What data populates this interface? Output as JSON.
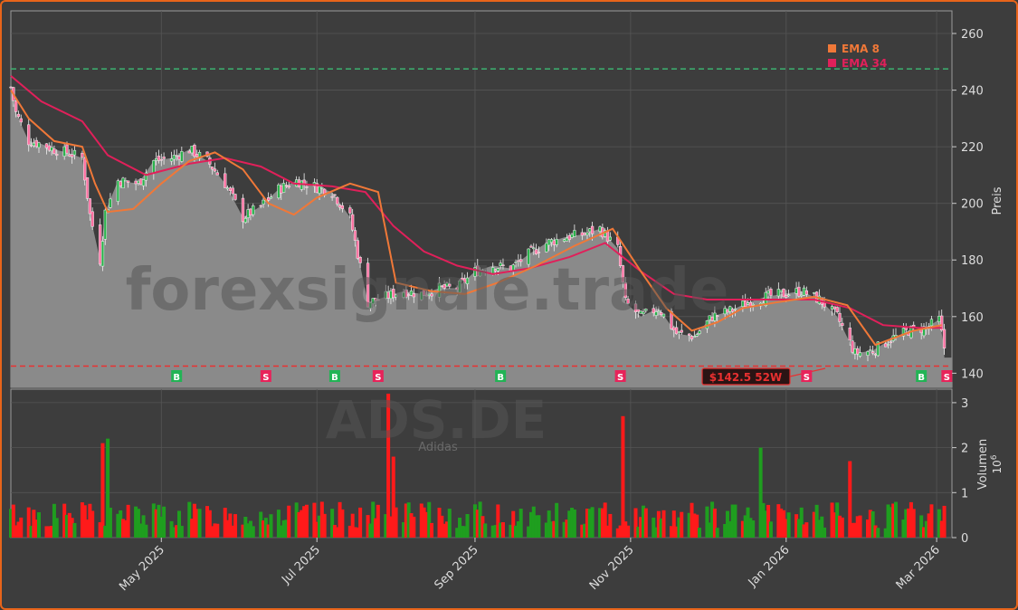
{
  "chart_data": {
    "type": "candlestick",
    "symbol": "ADS.DE",
    "company": "Adidas",
    "watermark": "forexsignale.trade",
    "price_axis": {
      "label": "Preis",
      "ylim": [
        135,
        268
      ],
      "ticks": [
        140,
        160,
        180,
        200,
        220,
        240,
        260
      ]
    },
    "volume_axis": {
      "label": "Volumen",
      "exponent_label": "10^6",
      "ylim": [
        0,
        3.3
      ],
      "ticks": [
        0,
        1,
        2,
        3
      ]
    },
    "x_axis": {
      "tick_labels": [
        "May 2025",
        "Jul 2025",
        "Sep 2025",
        "Nov 2025",
        "Jan 2026",
        "Mar 2026"
      ],
      "tick_dates": [
        "2025-05-01",
        "2025-07-01",
        "2025-09-01",
        "2025-11-01",
        "2026-01-01",
        "2026-03-01"
      ],
      "date_range": [
        "2025-03-03",
        "2026-03-07"
      ]
    },
    "legend": [
      {
        "label": "EMA 8",
        "color": "#f07838"
      },
      {
        "label": "EMA 34",
        "color": "#e0205a"
      }
    ],
    "high_52w": {
      "value": 247.5,
      "color": "#3cb371",
      "style": "dashed"
    },
    "low_52w": {
      "value": 142.5,
      "label": "$142.5 52W",
      "color": "#e83030",
      "style": "dashed"
    },
    "last_price": 145.5,
    "price_series": {
      "dates": [
        "2025-03-03",
        "2025-03-05",
        "2025-03-10",
        "2025-03-15",
        "2025-03-20",
        "2025-03-25",
        "2025-03-31",
        "2025-04-03",
        "2025-04-07",
        "2025-04-09",
        "2025-04-14",
        "2025-04-22",
        "2025-04-28",
        "2025-05-05",
        "2025-05-12",
        "2025-05-19",
        "2025-05-26",
        "2025-06-02",
        "2025-06-09",
        "2025-06-16",
        "2025-06-23",
        "2025-06-30",
        "2025-07-07",
        "2025-07-14",
        "2025-07-21",
        "2025-07-28",
        "2025-07-31",
        "2025-08-04",
        "2025-08-11",
        "2025-08-18",
        "2025-08-25",
        "2025-09-01",
        "2025-09-08",
        "2025-09-15",
        "2025-09-22",
        "2025-09-29",
        "2025-10-06",
        "2025-10-13",
        "2025-10-20",
        "2025-10-27",
        "2025-10-30",
        "2025-11-05",
        "2025-11-12",
        "2025-11-19",
        "2025-11-26",
        "2025-12-03",
        "2025-12-10",
        "2025-12-17",
        "2025-12-24",
        "2025-12-31",
        "2026-01-07",
        "2026-01-14",
        "2026-01-21",
        "2026-01-28",
        "2026-02-04",
        "2026-02-11",
        "2026-02-18",
        "2026-02-25",
        "2026-03-02",
        "2026-03-04"
      ],
      "close": [
        241,
        232,
        222,
        221,
        219,
        218,
        216,
        196,
        180,
        197,
        208,
        207,
        215,
        216,
        219,
        215,
        207,
        195,
        199,
        205,
        208,
        206,
        204,
        195,
        165,
        167,
        168,
        169,
        168,
        170,
        170,
        176,
        178,
        177,
        182,
        186,
        188,
        189,
        191,
        184,
        165,
        160,
        163,
        154,
        153,
        160,
        162,
        165,
        167,
        168,
        169,
        166,
        160,
        147,
        148,
        152,
        155,
        156,
        159,
        149
      ]
    },
    "ema8": {
      "dates": [
        "2025-03-03",
        "2025-03-10",
        "2025-03-20",
        "2025-03-31",
        "2025-04-05",
        "2025-04-10",
        "2025-04-20",
        "2025-05-01",
        "2025-05-12",
        "2025-05-22",
        "2025-06-02",
        "2025-06-12",
        "2025-06-22",
        "2025-07-01",
        "2025-07-14",
        "2025-07-25",
        "2025-08-01",
        "2025-08-15",
        "2025-08-28",
        "2025-09-10",
        "2025-09-25",
        "2025-10-10",
        "2025-10-25",
        "2025-11-05",
        "2025-11-15",
        "2025-11-25",
        "2025-12-05",
        "2025-12-15",
        "2025-12-28",
        "2026-01-12",
        "2026-01-25",
        "2026-02-05",
        "2026-02-20",
        "2026-03-03"
      ],
      "values": [
        240,
        230,
        222,
        220,
        207,
        197,
        198,
        207,
        215,
        218,
        212,
        200,
        196,
        202,
        207,
        204,
        172,
        169,
        168,
        172,
        178,
        185,
        191,
        176,
        163,
        155,
        158,
        163,
        165,
        167,
        164,
        150,
        155,
        157
      ]
    },
    "ema34": {
      "dates": [
        "2025-03-03",
        "2025-03-15",
        "2025-03-31",
        "2025-04-10",
        "2025-04-25",
        "2025-05-12",
        "2025-05-26",
        "2025-06-09",
        "2025-06-22",
        "2025-07-07",
        "2025-07-20",
        "2025-07-31",
        "2025-08-12",
        "2025-08-25",
        "2025-09-08",
        "2025-09-22",
        "2025-10-08",
        "2025-10-22",
        "2025-11-05",
        "2025-11-18",
        "2025-12-01",
        "2025-12-15",
        "2025-12-30",
        "2026-01-12",
        "2026-01-26",
        "2026-02-08",
        "2026-02-22",
        "2026-03-03"
      ],
      "values": [
        245,
        236,
        229,
        217,
        210,
        214,
        216,
        213,
        207,
        206,
        204,
        192,
        183,
        178,
        175,
        177,
        181,
        186,
        176,
        168,
        166,
        166,
        166,
        166,
        163,
        157,
        156,
        156
      ]
    },
    "signals": [
      {
        "type": "B",
        "date": "2025-05-07"
      },
      {
        "type": "S",
        "date": "2025-06-11"
      },
      {
        "type": "B",
        "date": "2025-07-08"
      },
      {
        "type": "S",
        "date": "2025-07-25"
      },
      {
        "type": "B",
        "date": "2025-09-11"
      },
      {
        "type": "S",
        "date": "2025-10-28"
      },
      {
        "type": "B",
        "date": "2025-12-15"
      },
      {
        "type": "S",
        "date": "2026-01-09"
      },
      {
        "type": "B",
        "date": "2026-02-23"
      },
      {
        "type": "S",
        "date": "2026-03-05"
      }
    ],
    "volume": {
      "notable": [
        {
          "date": "2025-04-08",
          "value": 2.1,
          "color": "red"
        },
        {
          "date": "2025-04-10",
          "value": 2.2,
          "color": "green"
        },
        {
          "date": "2025-07-29",
          "value": 3.2,
          "color": "red"
        },
        {
          "date": "2025-07-31",
          "value": 1.8,
          "color": "red"
        },
        {
          "date": "2025-10-29",
          "value": 2.7,
          "color": "red"
        },
        {
          "date": "2025-12-22",
          "value": 2.0,
          "color": "green"
        },
        {
          "date": "2026-01-26",
          "value": 1.7,
          "color": "red"
        }
      ],
      "typical_range": [
        0.2,
        0.8
      ]
    }
  }
}
